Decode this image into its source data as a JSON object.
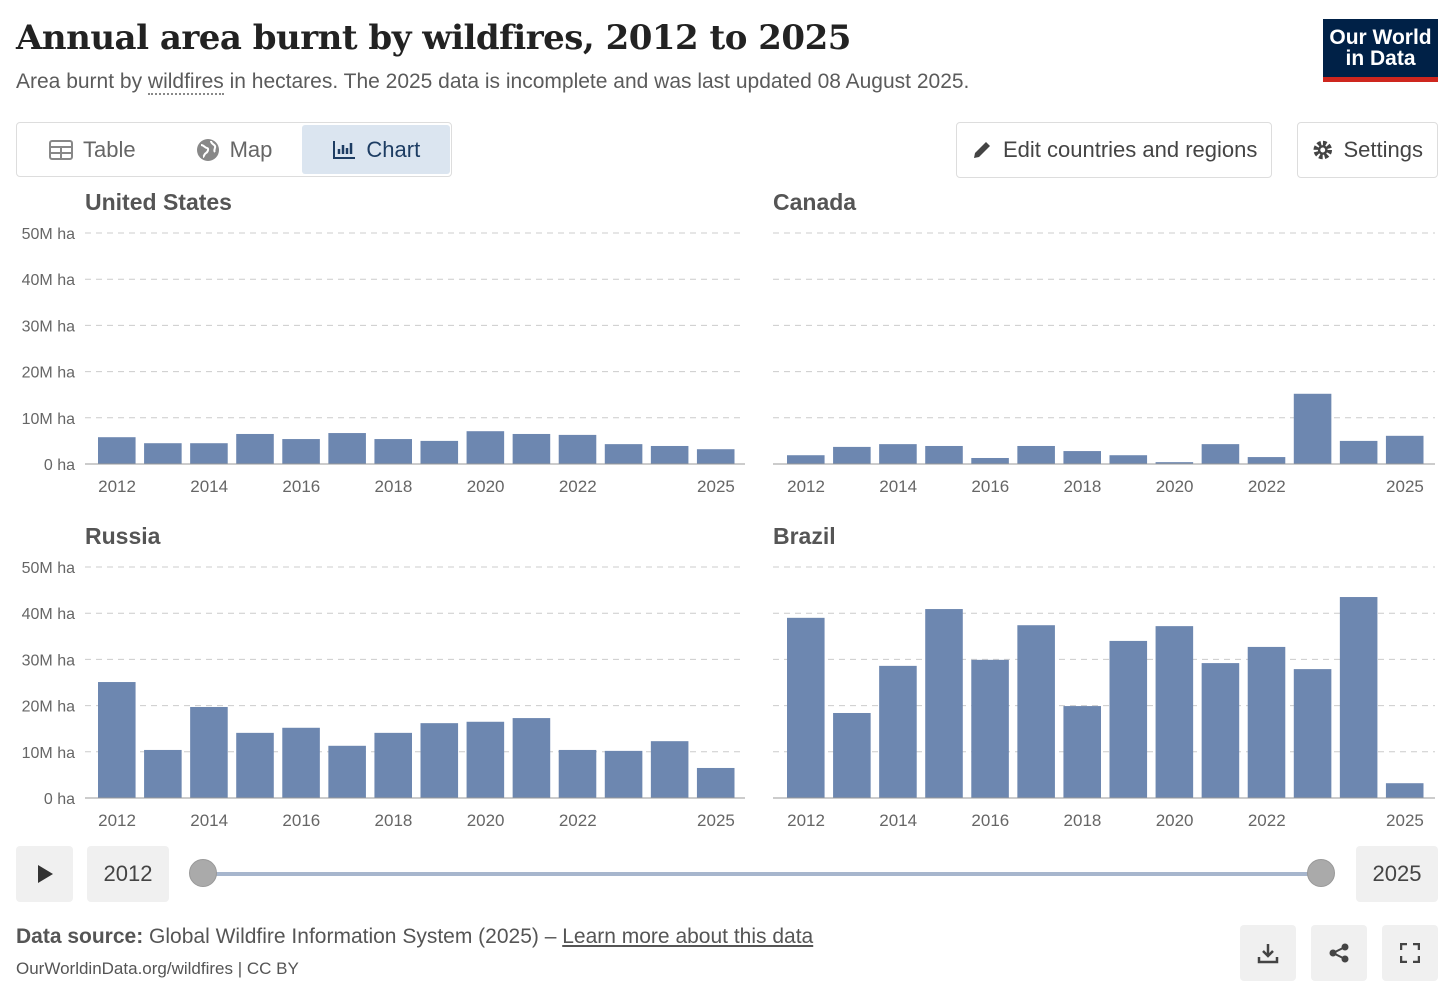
{
  "header": {
    "title": "Annual area burnt by wildfires, 2012 to 2025",
    "subtitle_pre": "Area burnt by ",
    "subtitle_link": "wildfires",
    "subtitle_post": " in hectares. The 2025 data is incomplete and was last updated 08 August 2025.",
    "logo": "Our World in Data"
  },
  "tabs": [
    {
      "label": "Table",
      "icon": "table-icon"
    },
    {
      "label": "Map",
      "icon": "globe-icon"
    },
    {
      "label": "Chart",
      "icon": "chart-icon",
      "active": true
    }
  ],
  "toolbar": {
    "edit": "Edit countries and regions",
    "settings": "Settings"
  },
  "timeline": {
    "start": "2012",
    "end": "2025"
  },
  "footer": {
    "source_label": "Data source:",
    "source": " Global Wildfire Information System (2025) – ",
    "learn": "Learn more about this data",
    "url": "OurWorldinData.org/wildfires | CC BY"
  },
  "colors": {
    "bar": "#6d87b0"
  },
  "chart_data": {
    "type": "bar",
    "title": "Annual area burnt by wildfires, 2012 to 2025",
    "ylabel": "hectares",
    "ylim": [
      0,
      50000000
    ],
    "yticks": [
      "0 ha",
      "10M ha",
      "20M ha",
      "30M ha",
      "40M ha",
      "50M ha"
    ],
    "categories": [
      "2012",
      "2013",
      "2014",
      "2015",
      "2016",
      "2017",
      "2018",
      "2019",
      "2020",
      "2021",
      "2022",
      "2023",
      "2024",
      "2025"
    ],
    "xtick_labels": [
      "2012",
      "2014",
      "2016",
      "2018",
      "2020",
      "2022",
      "2025"
    ],
    "series": [
      {
        "name": "United States",
        "values": [
          5.8,
          4.5,
          4.5,
          6.5,
          5.4,
          6.7,
          5.4,
          5.0,
          7.1,
          6.5,
          6.3,
          4.3,
          3.9,
          3.2
        ]
      },
      {
        "name": "Canada",
        "values": [
          1.9,
          3.7,
          4.3,
          3.9,
          1.3,
          3.9,
          2.8,
          1.9,
          0.4,
          4.3,
          1.5,
          15.2,
          5.0,
          6.1
        ]
      },
      {
        "name": "Russia",
        "values": [
          25.1,
          10.4,
          19.7,
          14.1,
          15.2,
          11.3,
          14.1,
          16.2,
          16.5,
          17.3,
          10.4,
          10.2,
          12.3,
          6.5
        ]
      },
      {
        "name": "Brazil",
        "values": [
          39.0,
          18.4,
          28.6,
          40.9,
          29.9,
          37.4,
          19.9,
          34.0,
          37.2,
          29.2,
          32.7,
          27.9,
          43.5,
          3.2
        ]
      }
    ],
    "value_unit": "million hectares"
  }
}
